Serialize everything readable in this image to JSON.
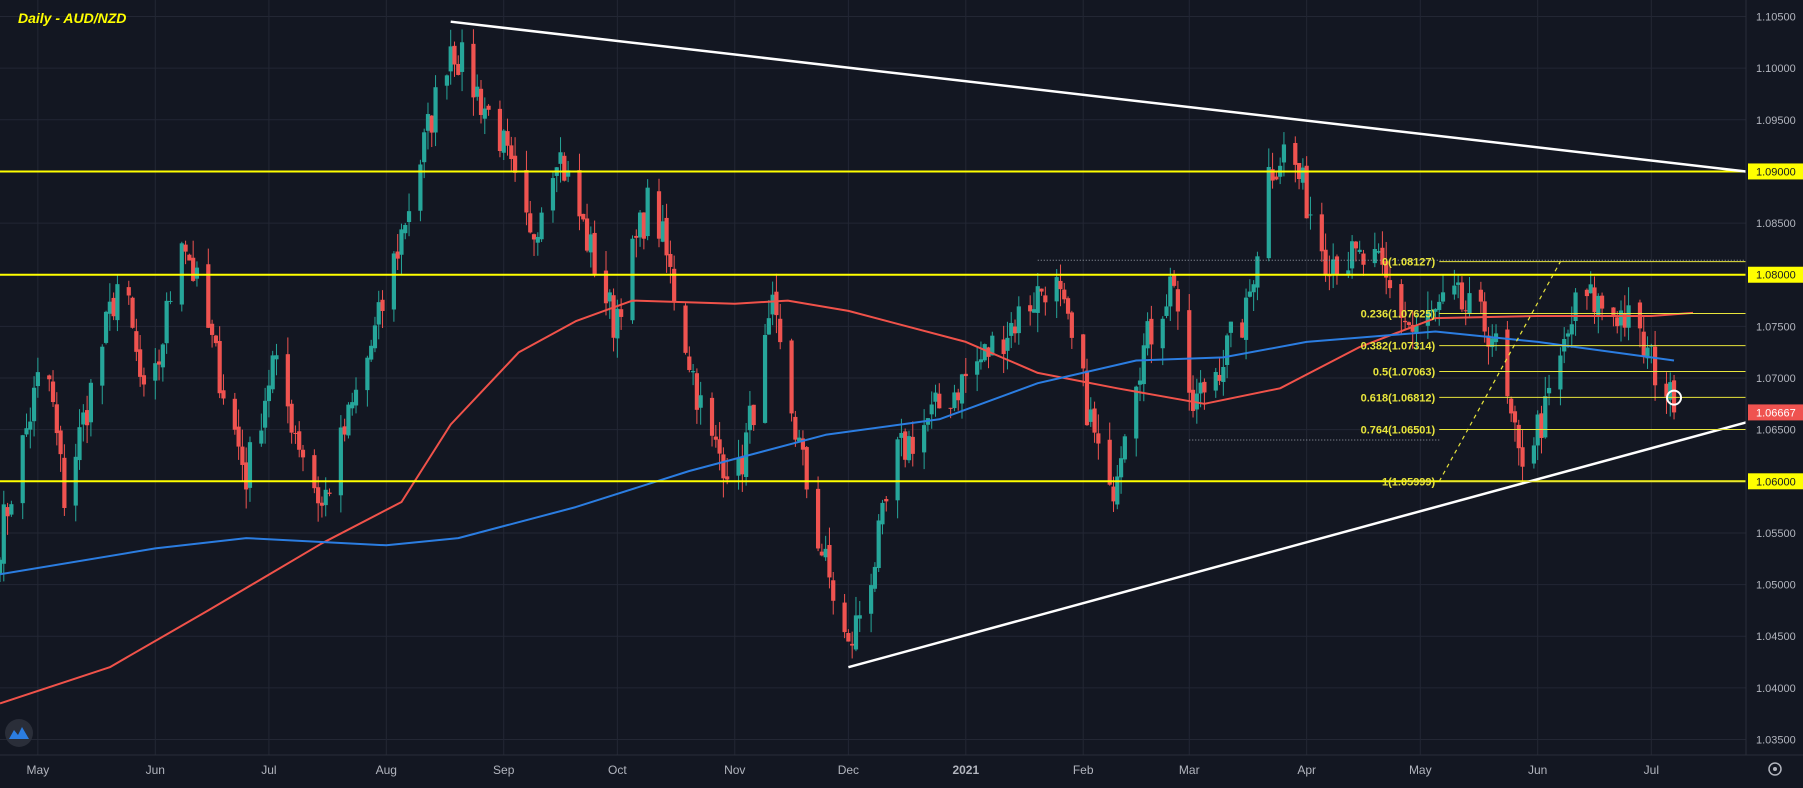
{
  "title": "Daily - AUD/NZD",
  "colors": {
    "background": "#131722",
    "grid": "#232734",
    "axis_text": "#b2b5be",
    "bull": "#26a69a",
    "bear": "#ef5350",
    "ma_red": "#f0524a",
    "ma_blue": "#2b7de1",
    "level_yellow": "#ffff00",
    "fib_yellow": "#e8e53c",
    "trendline": "#ffffff",
    "last_price_bg": "#ef5350",
    "level_label_bg": "#ffff00"
  },
  "x_axis": {
    "labels": [
      "May",
      "Jun",
      "Jul",
      "Aug",
      "Sep",
      "Oct",
      "Nov",
      "Dec",
      "2021",
      "Feb",
      "Mar",
      "Apr",
      "May",
      "Jun",
      "Jul"
    ]
  },
  "y_axis": {
    "labels": [
      "1.10500",
      "1.10000",
      "1.09500",
      "1.09000",
      "1.08500",
      "1.08000",
      "1.07500",
      "1.07000",
      "1.06500",
      "1.06000",
      "1.05500",
      "1.05000",
      "1.04500",
      "1.04000",
      "1.03500"
    ]
  },
  "chart_data": {
    "type": "candlestick",
    "title": "Daily - AUD/NZD",
    "y_range": [
      1.0335,
      1.1066
    ],
    "x_range": [
      "2020-04-21",
      "2021-07-26"
    ],
    "anchors": [
      [
        "2020-04-21",
        1.0545
      ],
      [
        "2020-05-03",
        1.0725
      ],
      [
        "2020-05-08",
        1.0585
      ],
      [
        "2020-05-23",
        1.0805
      ],
      [
        "2020-05-30",
        1.0655
      ],
      [
        "2020-06-08",
        1.0845
      ],
      [
        "2020-06-25",
        1.0605
      ],
      [
        "2020-07-02",
        1.0715
      ],
      [
        "2020-07-15",
        1.0575
      ],
      [
        "2020-07-30",
        1.0755
      ],
      [
        "2020-08-18",
        1.1025
      ],
      [
        "2020-08-31",
        1.0935
      ],
      [
        "2020-09-08",
        1.083
      ],
      [
        "2020-09-15",
        1.0925
      ],
      [
        "2020-09-30",
        1.0755
      ],
      [
        "2020-10-10",
        1.088
      ],
      [
        "2020-10-25",
        1.064
      ],
      [
        "2020-11-02",
        1.0605
      ],
      [
        "2020-11-11",
        1.076
      ],
      [
        "2020-11-22",
        1.056
      ],
      [
        "2020-12-01",
        1.0435
      ],
      [
        "2020-12-08",
        1.0525
      ],
      [
        "2020-12-14",
        1.0625
      ],
      [
        "2021-01-15",
        1.076
      ],
      [
        "2021-01-24",
        1.08
      ],
      [
        "2021-02-01",
        1.069
      ],
      [
        "2021-02-08",
        1.058
      ],
      [
        "2021-02-14",
        1.07
      ],
      [
        "2021-02-25",
        1.08
      ],
      [
        "2021-03-01",
        1.0665
      ],
      [
        "2021-03-16",
        1.076
      ],
      [
        "2021-03-22",
        1.09
      ],
      [
        "2021-03-27",
        1.0925
      ],
      [
        "2021-04-06",
        1.082
      ],
      [
        "2021-04-19",
        1.081
      ],
      [
        "2021-04-29",
        1.0745
      ],
      [
        "2021-05-10",
        1.0775
      ],
      [
        "2021-05-20",
        1.0745
      ],
      [
        "2021-05-27",
        1.062
      ],
      [
        "2021-06-03",
        1.0665
      ],
      [
        "2021-06-12",
        1.078
      ],
      [
        "2021-06-24",
        1.076
      ],
      [
        "2021-07-05",
        1.069
      ],
      [
        "2021-07-07",
        1.06667
      ]
    ],
    "moving_average_red": [
      [
        "2020-04-21",
        1.0385
      ],
      [
        "2020-05-20",
        1.042
      ],
      [
        "2020-06-15",
        1.0475
      ],
      [
        "2020-07-15",
        1.054
      ],
      [
        "2020-08-05",
        1.058
      ],
      [
        "2020-08-18",
        1.0655
      ],
      [
        "2020-09-05",
        1.0725
      ],
      [
        "2020-09-20",
        1.0755
      ],
      [
        "2020-10-05",
        1.0775
      ],
      [
        "2020-11-01",
        1.0772
      ],
      [
        "2020-11-15",
        1.0775
      ],
      [
        "2020-12-01",
        1.0765
      ],
      [
        "2021-01-01",
        1.0735
      ],
      [
        "2021-01-20",
        1.0705
      ],
      [
        "2021-02-10",
        1.069
      ],
      [
        "2021-03-05",
        1.0675
      ],
      [
        "2021-03-25",
        1.069
      ],
      [
        "2021-04-15",
        1.073
      ],
      [
        "2021-05-05",
        1.0758
      ],
      [
        "2021-06-01",
        1.076
      ],
      [
        "2021-07-01",
        1.076
      ],
      [
        "2021-07-12",
        1.0763
      ]
    ],
    "moving_average_blue": [
      [
        "2020-04-21",
        1.051
      ],
      [
        "2020-06-01",
        1.0535
      ],
      [
        "2020-06-25",
        1.0545
      ],
      [
        "2020-08-01",
        1.0538
      ],
      [
        "2020-08-20",
        1.0545
      ],
      [
        "2020-09-20",
        1.0575
      ],
      [
        "2020-10-20",
        1.061
      ],
      [
        "2020-11-25",
        1.0645
      ],
      [
        "2020-12-25",
        1.066
      ],
      [
        "2021-01-20",
        1.0695
      ],
      [
        "2021-02-15",
        1.0717
      ],
      [
        "2021-03-10",
        1.072
      ],
      [
        "2021-04-01",
        1.0735
      ],
      [
        "2021-05-05",
        1.0745
      ],
      [
        "2021-06-01",
        1.0735
      ],
      [
        "2021-07-01",
        1.072
      ],
      [
        "2021-07-07",
        1.0717
      ]
    ],
    "horizontal_levels": [
      1.09,
      1.08,
      1.06
    ],
    "trendlines": [
      {
        "from": [
          "2020-08-18",
          1.1045
        ],
        "to": [
          "2021-07-26",
          1.09
        ]
      },
      {
        "from": [
          "2020-12-01",
          1.042
        ],
        "to": [
          "2021-07-26",
          1.0657
        ]
      }
    ],
    "fibonacci": {
      "from": [
        "2021-05-06",
        1.05999
      ],
      "to": [
        "2021-06-07",
        1.08127
      ],
      "extend_to": "2021-07-26",
      "levels": [
        {
          "label": "0(1.08127)",
          "price": 1.08127
        },
        {
          "label": "0.236(1.07625)",
          "price": 1.07625
        },
        {
          "label": "0.382(1.07314)",
          "price": 1.07314
        },
        {
          "label": "0.5(1.07063)",
          "price": 1.07063
        },
        {
          "label": "0.618(1.06812)",
          "price": 1.06812
        },
        {
          "label": "0.764(1.06501)",
          "price": 1.06501
        },
        {
          "label": "1(1.05999)",
          "price": 1.05999
        }
      ]
    },
    "dotted_range": {
      "top": {
        "price": 1.0814,
        "from": "2021-01-20",
        "to": "2021-07-26"
      },
      "bottom": {
        "price": 1.064,
        "from": "2021-03-01",
        "to": "2021-05-06"
      }
    },
    "marker": {
      "date": "2021-07-07",
      "price": 1.0681
    },
    "level_labels": [
      "1.09000",
      "1.08000",
      "1.06000"
    ],
    "last_price": "1.06667",
    "last_price_value": 1.06667
  }
}
